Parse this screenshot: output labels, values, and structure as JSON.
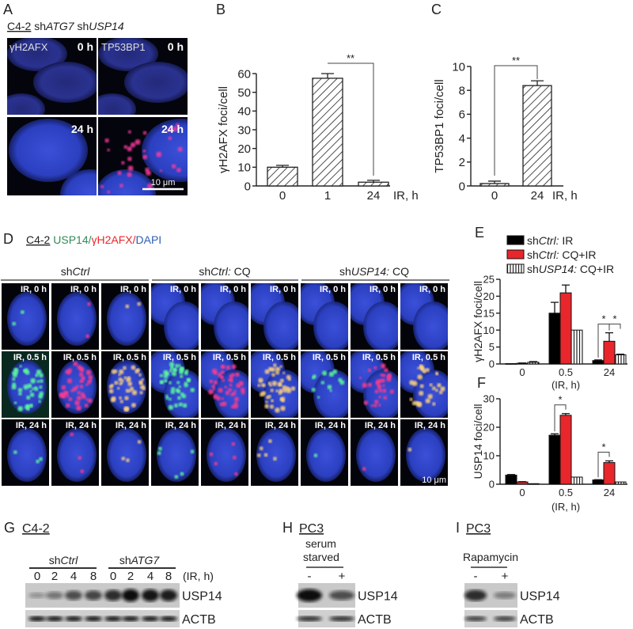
{
  "panels": {
    "A": {
      "letter": "A",
      "cell_line": "C4-2",
      "sh1": "sh",
      "gene1": "ATG7",
      "sh2": " sh",
      "gene2": "USP14",
      "stain_left": "γH2AFX",
      "stain_right": "TP53BP1",
      "time_top": "0 h",
      "time_bottom": "24 h",
      "scale_bar": "10 μm"
    },
    "B": {
      "letter": "B"
    },
    "C": {
      "letter": "C"
    },
    "D": {
      "letter": "D",
      "cell_line": "C4-2",
      "stain_green": "USP14/",
      "stain_red": "γH2AFX/",
      "stain_blue": "DAPI",
      "stain_colors": {
        "green": "#2e8b57",
        "red": "#e8262c",
        "blue": "#2f5fb3"
      },
      "groups": [
        {
          "prefix": "sh",
          "gene": "Ctrl",
          "suffix": ""
        },
        {
          "prefix": "sh",
          "gene": "Ctrl:",
          "suffix": " CQ"
        },
        {
          "prefix": "sh",
          "gene": "USP14:",
          "suffix": " CQ"
        }
      ],
      "row_labels": [
        "IR, 0 h",
        "IR, 0.5 h",
        "IR, 24 h"
      ],
      "scale_bar": "10 μm"
    },
    "E": {
      "letter": "E"
    },
    "F": {
      "letter": "F"
    },
    "G": {
      "letter": "G",
      "cell_line": "C4-2",
      "groups": [
        {
          "prefix": "sh",
          "gene": "Ctrl"
        },
        {
          "prefix": "sh",
          "gene": "ATG7"
        }
      ],
      "lanes": [
        "0",
        "2",
        "4",
        "8",
        "0",
        "2",
        "4",
        "8"
      ],
      "lane_unit": "(IR, h)",
      "blots": [
        {
          "label": "USP14",
          "intensities": [
            0.15,
            0.35,
            0.6,
            0.65,
            0.8,
            1.0,
            0.95,
            0.9
          ]
        },
        {
          "label": "ACTB",
          "intensities": [
            0.95,
            0.95,
            0.95,
            0.95,
            0.95,
            0.95,
            0.95,
            0.95
          ]
        }
      ]
    },
    "H": {
      "letter": "H",
      "cell_line": "PC3",
      "treatment_line1": "serum",
      "treatment_line2": "starved",
      "lanes": [
        "-",
        "+"
      ],
      "blots": [
        {
          "label": "USP14",
          "intensities": [
            1.0,
            0.6
          ]
        },
        {
          "label": "ACTB",
          "intensities": [
            0.8,
            0.8
          ]
        }
      ]
    },
    "I": {
      "letter": "I",
      "cell_line": "PC3",
      "treatment": "Rapamycin",
      "lanes": [
        "-",
        "+"
      ],
      "blots": [
        {
          "label": "USP14",
          "intensities": [
            0.8,
            0.3
          ]
        },
        {
          "label": "ACTB",
          "intensities": [
            0.7,
            0.7
          ]
        }
      ]
    }
  },
  "chart_data": [
    {
      "panel": "B",
      "type": "bar",
      "categories": [
        "0",
        "1",
        "24"
      ],
      "values": [
        10,
        57.5,
        2
      ],
      "errors": [
        1,
        2.5,
        1
      ],
      "ylabel": "γH2AFX foci/cell",
      "xlabel": "IR, h",
      "ylim": [
        0,
        60
      ],
      "yticks": [
        "0",
        "10",
        "20",
        "30",
        "40",
        "50",
        "60"
      ],
      "fill": "diagonal-hatch",
      "significance": [
        {
          "between": [
            1,
            2
          ],
          "label": "**"
        }
      ]
    },
    {
      "panel": "C",
      "type": "bar",
      "categories": [
        "0",
        "24"
      ],
      "values": [
        0.2,
        8.4
      ],
      "errors": [
        0.2,
        0.4
      ],
      "ylabel": "TP53BP1  foci/cell",
      "xlabel": "IR, h",
      "ylim": [
        0,
        10
      ],
      "yticks": [
        "0",
        "2",
        "4",
        "6",
        "8",
        "10"
      ],
      "fill": "diagonal-hatch",
      "significance": [
        {
          "between": [
            0,
            1
          ],
          "label": "**"
        }
      ]
    },
    {
      "panel": "E",
      "type": "bar",
      "categories": [
        "0",
        "0.5",
        "24"
      ],
      "xlabel": "(IR, h)",
      "ylabel": "γH2AFX foci/cell",
      "ylim": [
        0,
        25
      ],
      "yticks": [
        "0",
        "5",
        "10",
        "15",
        "20",
        "25"
      ],
      "legend": "top",
      "legend_items": [
        {
          "prefix": "sh",
          "gene": "Ctrl:",
          "condition": "  IR"
        },
        {
          "prefix": "sh",
          "gene": "Ctrl:",
          "condition": "  CQ+IR"
        },
        {
          "prefix": "sh",
          "gene": "USP14:",
          "condition": "  CQ+IR"
        }
      ],
      "series": [
        {
          "values": [
            0.1,
            15,
            1
          ],
          "errors": [
            0.05,
            3.2,
            0.2
          ],
          "color": "#000000"
        },
        {
          "values": [
            0.2,
            21,
            6.7
          ],
          "errors": [
            0.1,
            2.3,
            2.5
          ],
          "color": "#e8262c"
        },
        {
          "values": [
            0.5,
            10,
            2.7
          ],
          "errors": [
            0.2,
            0,
            0.2
          ],
          "fill": "vertical-hatch"
        }
      ],
      "significance": [
        {
          "category": 2,
          "between_series": [
            0,
            1
          ],
          "label": "*"
        },
        {
          "category": 2,
          "between_series": [
            1,
            2
          ],
          "label": "*"
        }
      ]
    },
    {
      "panel": "F",
      "type": "bar",
      "categories": [
        "0",
        "0.5",
        "24"
      ],
      "xlabel": "(IR, h)",
      "ylabel": "USP14 foci/cell",
      "ylim": [
        0,
        30
      ],
      "yticks": [
        "0",
        "10",
        "20",
        "30"
      ],
      "series": [
        {
          "values": [
            3.2,
            17.2,
            1.5
          ],
          "errors": [
            0.2,
            0.5,
            0.1
          ],
          "color": "#000000"
        },
        {
          "values": [
            0.8,
            24.2,
            7.6
          ],
          "errors": [
            0.1,
            0.6,
            0.6
          ],
          "color": "#e8262c"
        },
        {
          "values": [
            0.2,
            2.5,
            0.8
          ],
          "errors": [
            0,
            0,
            0
          ],
          "fill": "vertical-hatch"
        }
      ],
      "significance": [
        {
          "category": 1,
          "between_series": [
            0,
            1
          ],
          "label": "*"
        },
        {
          "category": 2,
          "between_series": [
            0,
            1
          ],
          "label": "*"
        }
      ]
    }
  ]
}
